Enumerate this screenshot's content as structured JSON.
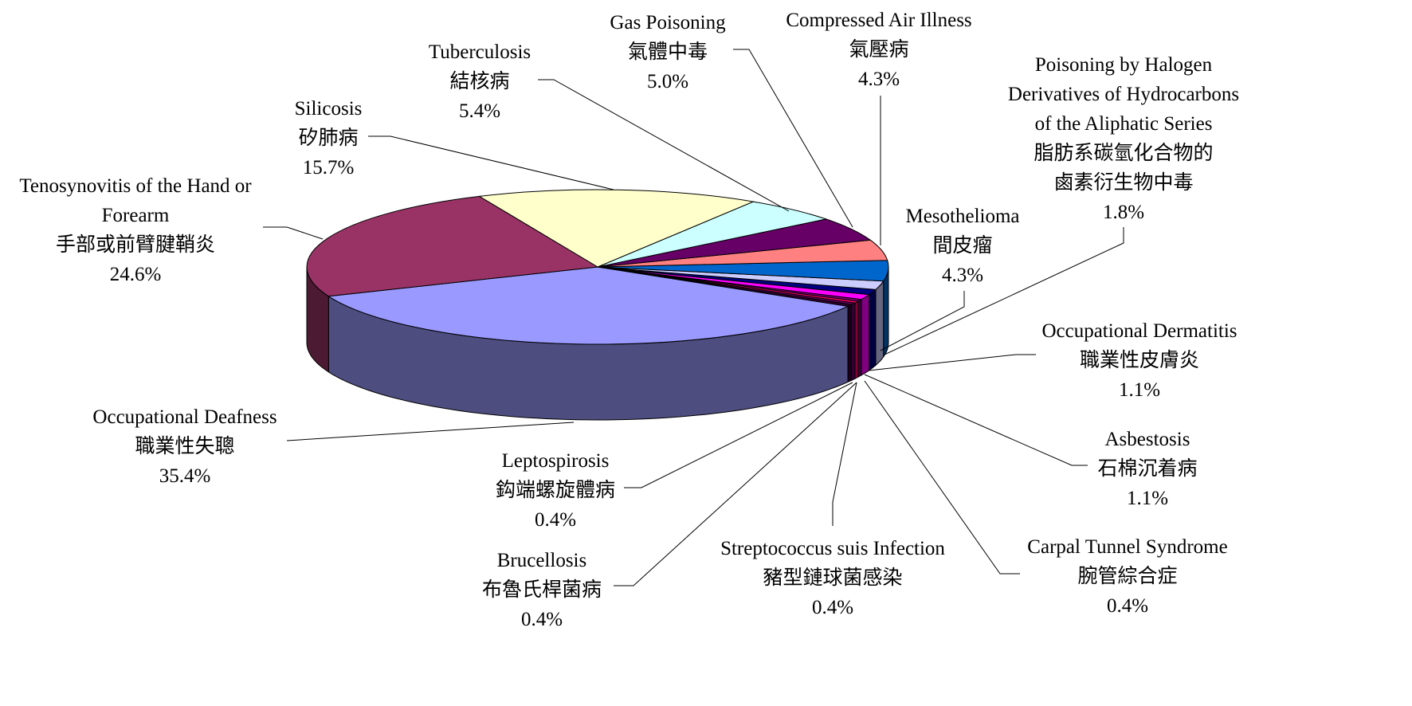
{
  "chart_data": {
    "type": "pie3d",
    "categories": [
      "Occupational Deafness",
      "Leptospirosis",
      "Brucellosis",
      "Streptococcus suis Infection",
      "Carpal Tunnel Syndrome",
      "Asbestosis",
      "Occupational Dermatitis",
      "Poisoning by Halogen Derivatives of Hydrocarbons of the Aliphatic Series",
      "Mesothelioma",
      "Compressed Air Illness",
      "Gas Poisoning",
      "Tuberculosis",
      "Silicosis",
      "Tenosynovitis of the Hand or Forearm"
    ],
    "categories_zh": [
      "職業性失聰",
      "鈎端螺旋體病",
      "布魯氏桿菌病",
      "豬型鏈球菌感染",
      "腕管綜合症",
      "石棉沉着病",
      "職業性皮膚炎",
      "脂肪系碳氫化合物的鹵素衍生物中毒",
      "間皮瘤",
      "氣壓病",
      "氣體中毒",
      "結核病",
      "矽肺病",
      "手部或前臂腱鞘炎"
    ],
    "values": [
      35.4,
      0.4,
      0.4,
      0.4,
      0.4,
      1.1,
      1.1,
      1.8,
      4.3,
      4.3,
      5.0,
      5.4,
      15.7,
      24.6
    ],
    "value_labels": [
      "35.4%",
      "0.4%",
      "0.4%",
      "0.4%",
      "0.4%",
      "1.1%",
      "1.1%",
      "1.8%",
      "4.3%",
      "4.3%",
      "5.0%",
      "5.4%",
      "15.7%",
      "24.6%"
    ],
    "colors": [
      "#9999ff",
      "#330033",
      "#660066",
      "#ff0066",
      "#800080",
      "#ff00ff",
      "#000080",
      "#ccccff",
      "#0066cc",
      "#ff8080",
      "#660066",
      "#ccffff",
      "#ffffcc",
      "#993366"
    ]
  }
}
